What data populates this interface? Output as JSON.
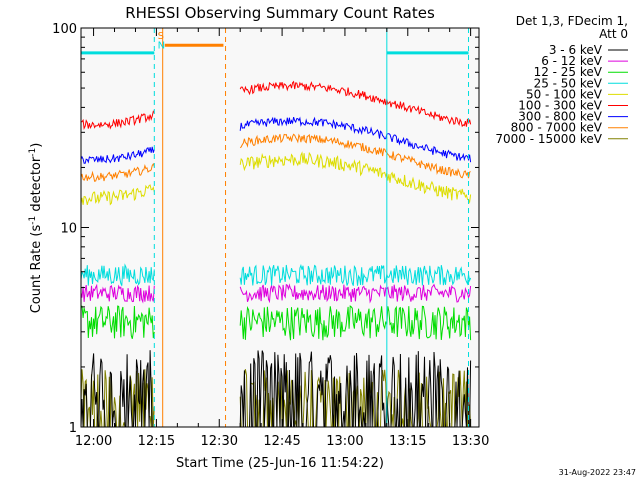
{
  "chart_data": {
    "type": "line",
    "title": "RHESSI Observing Summary Count Rates",
    "xlabel": "Start Time (25-Jun-16 11:54:22)",
    "ylabel_main": "Count Rate (s",
    "ylabel_sup1": "-1",
    "ylabel_mid": " detector",
    "ylabel_sup2": "-1",
    "ylabel_end": ")",
    "yscale": "log",
    "ylim": [
      1,
      100
    ],
    "xlim_minutes": [
      -3,
      92
    ],
    "x_tick_labels": [
      "12:00",
      "12:15",
      "12:30",
      "12:45",
      "13:00",
      "13:15",
      "13:30"
    ],
    "x_tick_minutes": [
      0,
      15,
      30,
      45,
      60,
      75,
      90
    ],
    "y_tick_labels": [
      "1",
      "10",
      "100"
    ],
    "y_tick_values": [
      1,
      10,
      100
    ],
    "legend_header": [
      "Det 1,3, FDecim 1,",
      "Att 0"
    ],
    "legend_position": "right",
    "series": [
      {
        "name": "3 - 6 keV",
        "color": "#000000",
        "level": 1.8,
        "noise": 0.35,
        "kind": "low"
      },
      {
        "name": "6 - 12 keV",
        "color": "#dd00dd",
        "level": 4.7,
        "noise": 0.1,
        "kind": "flat"
      },
      {
        "name": "12 - 25 keV",
        "color": "#00dd00",
        "level": 3.4,
        "noise": 0.2,
        "kind": "flat"
      },
      {
        "name": "25 - 50 keV",
        "color": "#00dddd",
        "level": 5.8,
        "noise": 0.12,
        "kind": "flat"
      },
      {
        "name": "50 - 100 keV",
        "color": "#dddd00",
        "level": 18,
        "noise": 0.08,
        "kind": "orbit"
      },
      {
        "name": "100 - 300 keV",
        "color": "#ff0000",
        "level": 42,
        "noise": 0.05,
        "kind": "orbit"
      },
      {
        "name": "300 - 800 keV",
        "color": "#0000ff",
        "level": 28,
        "noise": 0.05,
        "kind": "orbit"
      },
      {
        "name": "800 - 7000 keV",
        "color": "#ff8000",
        "level": 23,
        "noise": 0.05,
        "kind": "orbit"
      },
      {
        "name": "7000 - 15000 keV",
        "color": "#808000",
        "level": 1.5,
        "noise": 0.3,
        "kind": "low"
      }
    ],
    "data_intervals_minutes": [
      [
        -3,
        14.5
      ],
      [
        35,
        90
      ]
    ],
    "night_markers": [
      {
        "x_minutes": 14.5,
        "color": "#00dddd",
        "style": "dashed"
      },
      {
        "x_minutes": 70,
        "color": "#00dddd",
        "style": "solid"
      },
      {
        "x_minutes": 89.5,
        "color": "#00dddd",
        "style": "dashed"
      }
    ],
    "saa_markers": [
      {
        "x_minutes": 16.5,
        "color": "#ff8000",
        "style": "solid"
      },
      {
        "x_minutes": 31.5,
        "color": "#ff8000",
        "style": "dashed"
      }
    ],
    "flag_bars": [
      {
        "from": -3,
        "to": 14.5,
        "color": "#00dddd",
        "y": 75
      },
      {
        "from": 17,
        "to": 31,
        "color": "#ff8000",
        "y": 82
      },
      {
        "from": 70,
        "to": 89.5,
        "color": "#00dddd",
        "y": 75
      }
    ],
    "flag_letters": [
      {
        "text": "S",
        "color": "#ff8000",
        "x_minutes": 15.3,
        "y": 88
      },
      {
        "text": "N",
        "color": "#00dddd",
        "x_minutes": 15.3,
        "y": 79
      }
    ],
    "timestamp": "31-Aug-2022 23:47"
  },
  "colors": {
    "plot_bg": "#f8f8f8",
    "axis": "#000000"
  }
}
